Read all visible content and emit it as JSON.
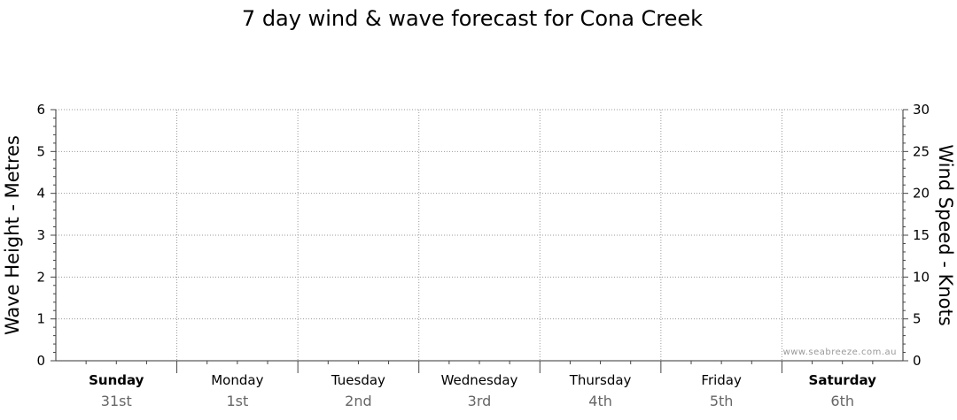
{
  "chart_data": {
    "type": "line",
    "title": "7 day wind & wave forecast for Cona Creek",
    "ylabel_left": "Wave Height - Metres",
    "ylabel_right": "Wind Speed - Knots",
    "left_axis": {
      "ylim": [
        0,
        6
      ],
      "ticks": [
        0,
        1,
        2,
        3,
        4,
        5,
        6
      ]
    },
    "right_axis": {
      "ylim": [
        0,
        30
      ],
      "ticks": [
        0,
        5,
        10,
        15,
        20,
        25,
        30
      ]
    },
    "days": [
      {
        "name": "Sunday",
        "date": "31st",
        "bold": true
      },
      {
        "name": "Monday",
        "date": "1st",
        "bold": false
      },
      {
        "name": "Tuesday",
        "date": "2nd",
        "bold": false
      },
      {
        "name": "Wednesday",
        "date": "3rd",
        "bold": false
      },
      {
        "name": "Thursday",
        "date": "4th",
        "bold": false
      },
      {
        "name": "Friday",
        "date": "5th",
        "bold": false
      },
      {
        "name": "Saturday",
        "date": "6th",
        "bold": true
      }
    ],
    "series": [],
    "grid": true,
    "watermark": "www.seabreeze.com.au"
  }
}
